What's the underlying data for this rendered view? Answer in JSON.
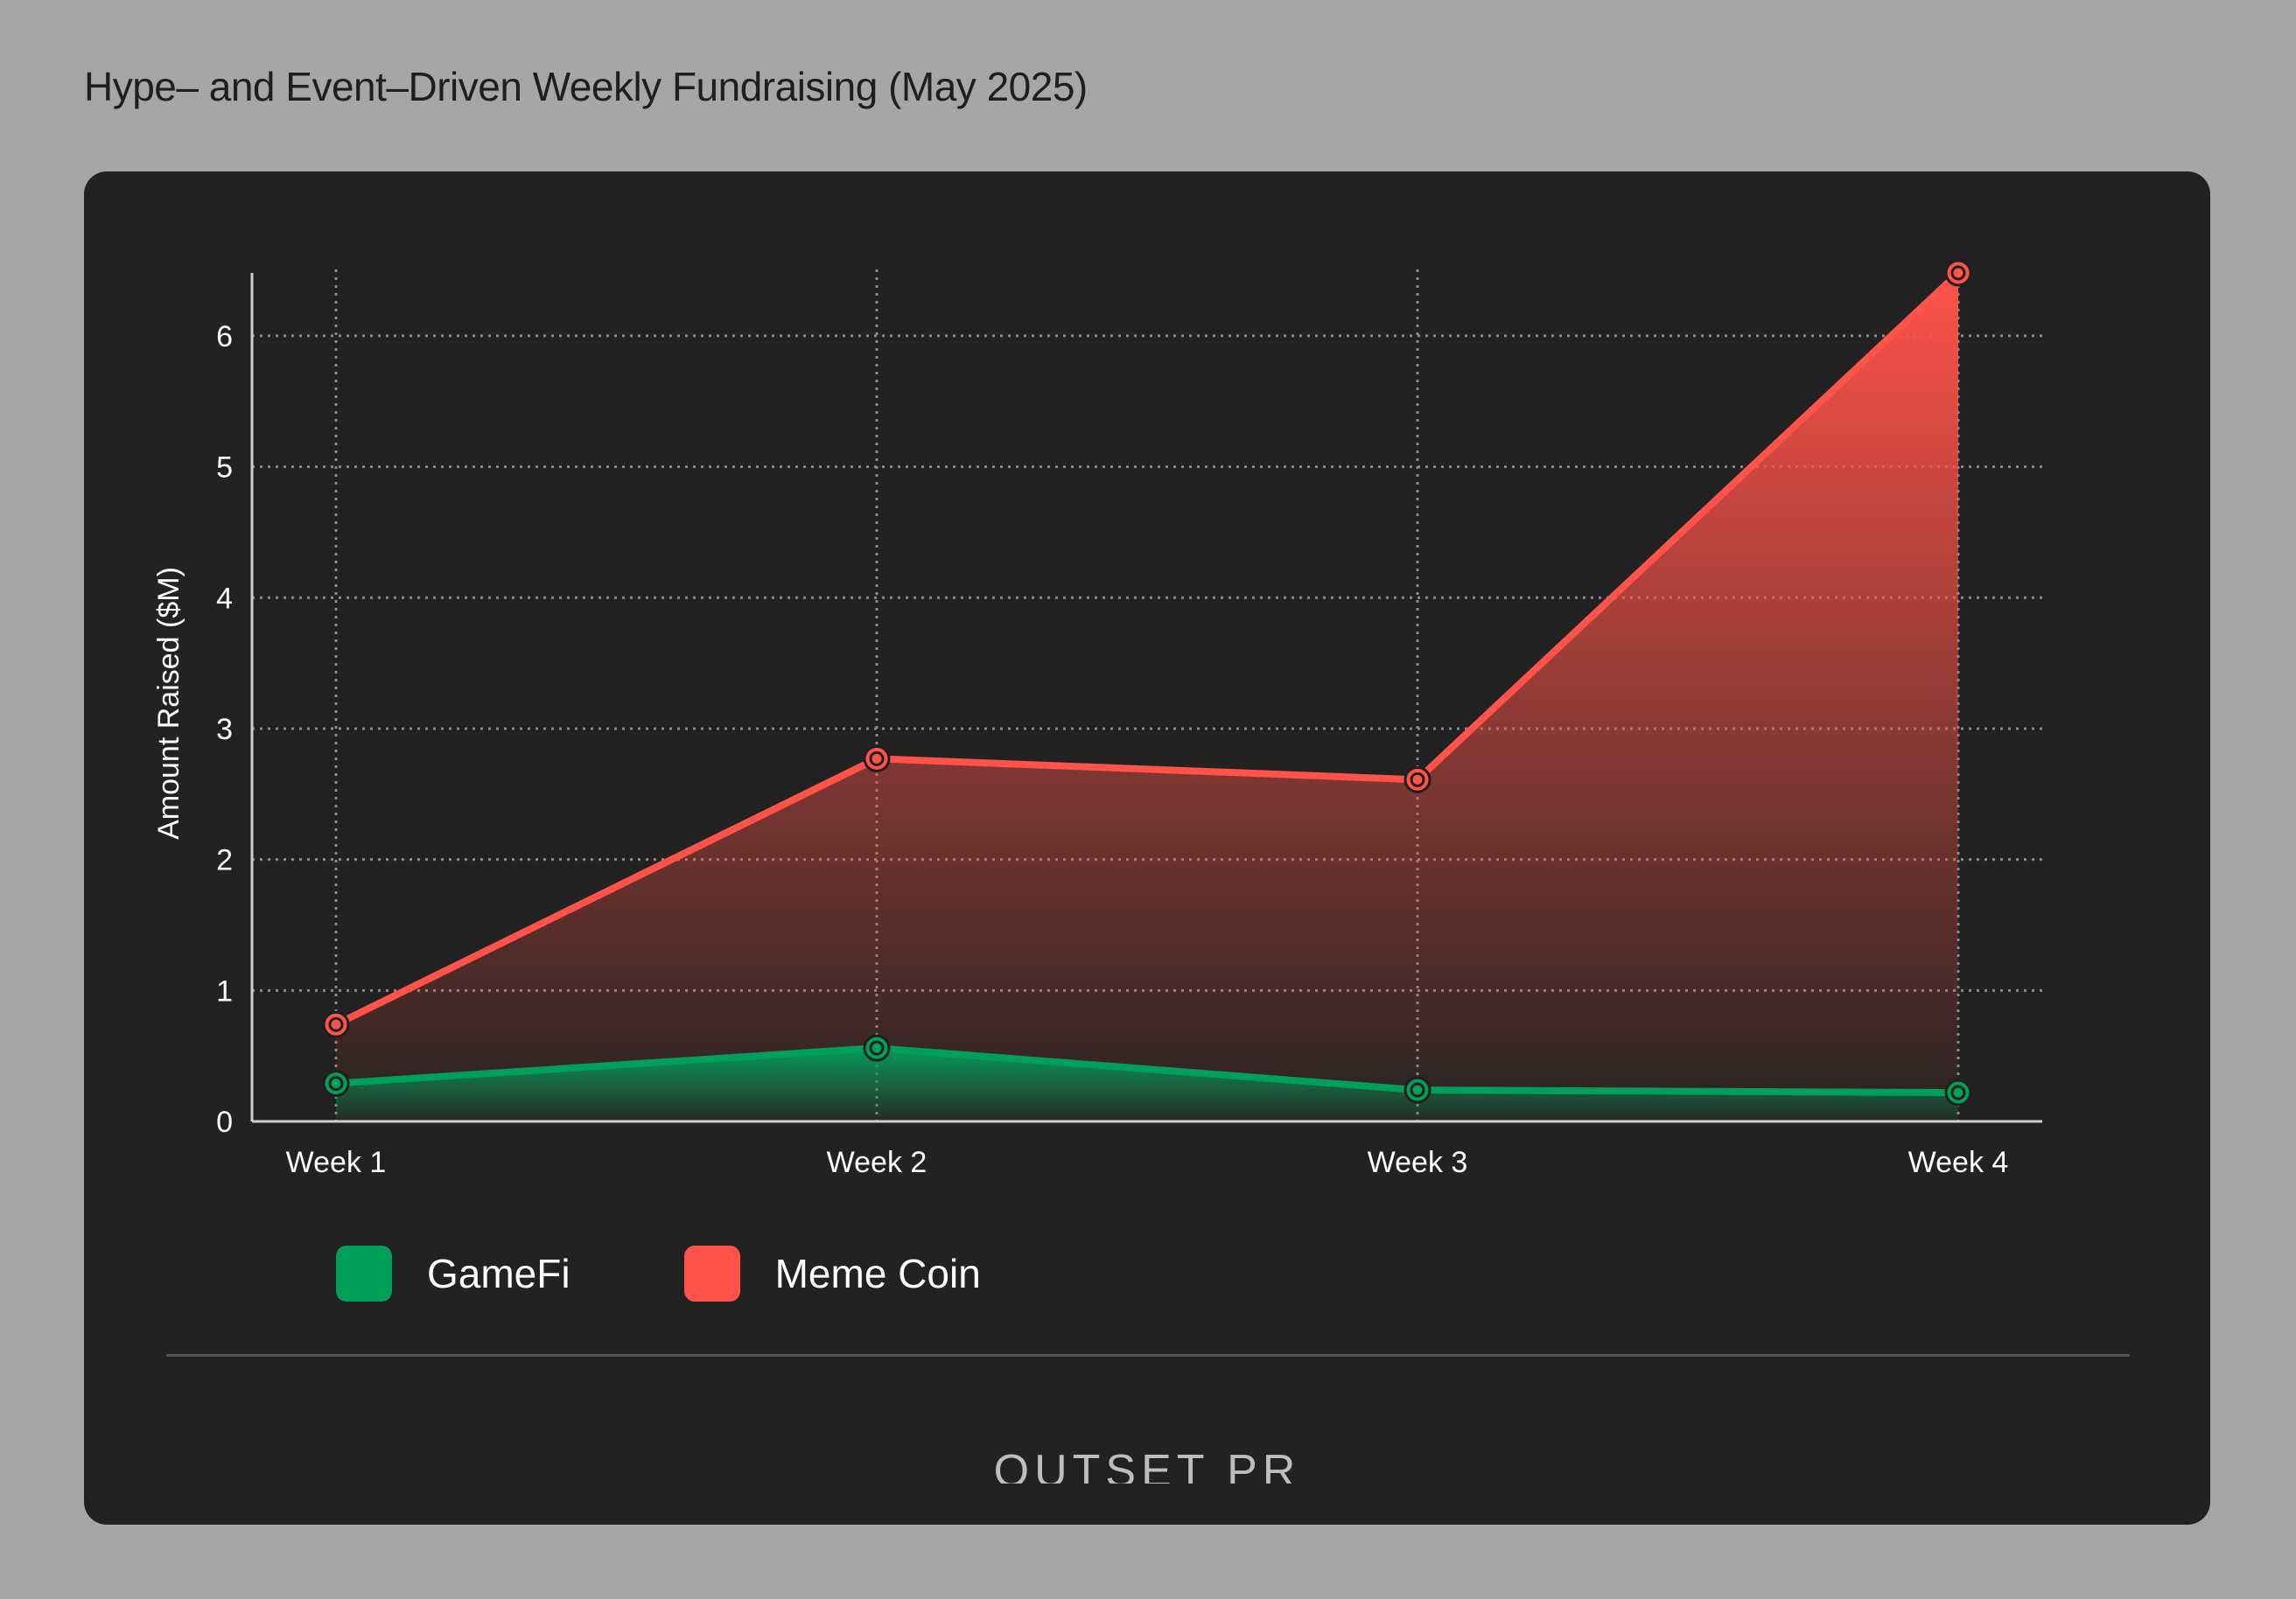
{
  "title": "Hype– and Event–Driven Weekly Fundraising  (May 2025)",
  "brand": "OUTSET PR",
  "colors": {
    "background": "#a6a6a6",
    "card": "#222222",
    "grid": "#8a8a8a",
    "axis": "#cfcfcf",
    "gamefi": "#00a05a",
    "meme": "#ff5249"
  },
  "chart_data": {
    "type": "area",
    "title": "Hype– and Event–Driven Weekly Fundraising  (May 2025)",
    "xlabel": "",
    "ylabel": "Amount Raised ($M)",
    "categories": [
      "Week 1",
      "Week 2",
      "Week 3",
      "Week 4"
    ],
    "ylim": [
      0,
      6.4
    ],
    "yticks": [
      0,
      1,
      2,
      3,
      4,
      5,
      6
    ],
    "grid": true,
    "legend_position": "bottom-left",
    "series": [
      {
        "name": "GameFi",
        "color": "#00a05a",
        "values": [
          0.29,
          0.56,
          0.24,
          0.22
        ]
      },
      {
        "name": "Meme Coin",
        "color": "#ff5249",
        "values": [
          0.74,
          2.77,
          2.61,
          6.48
        ]
      }
    ]
  }
}
